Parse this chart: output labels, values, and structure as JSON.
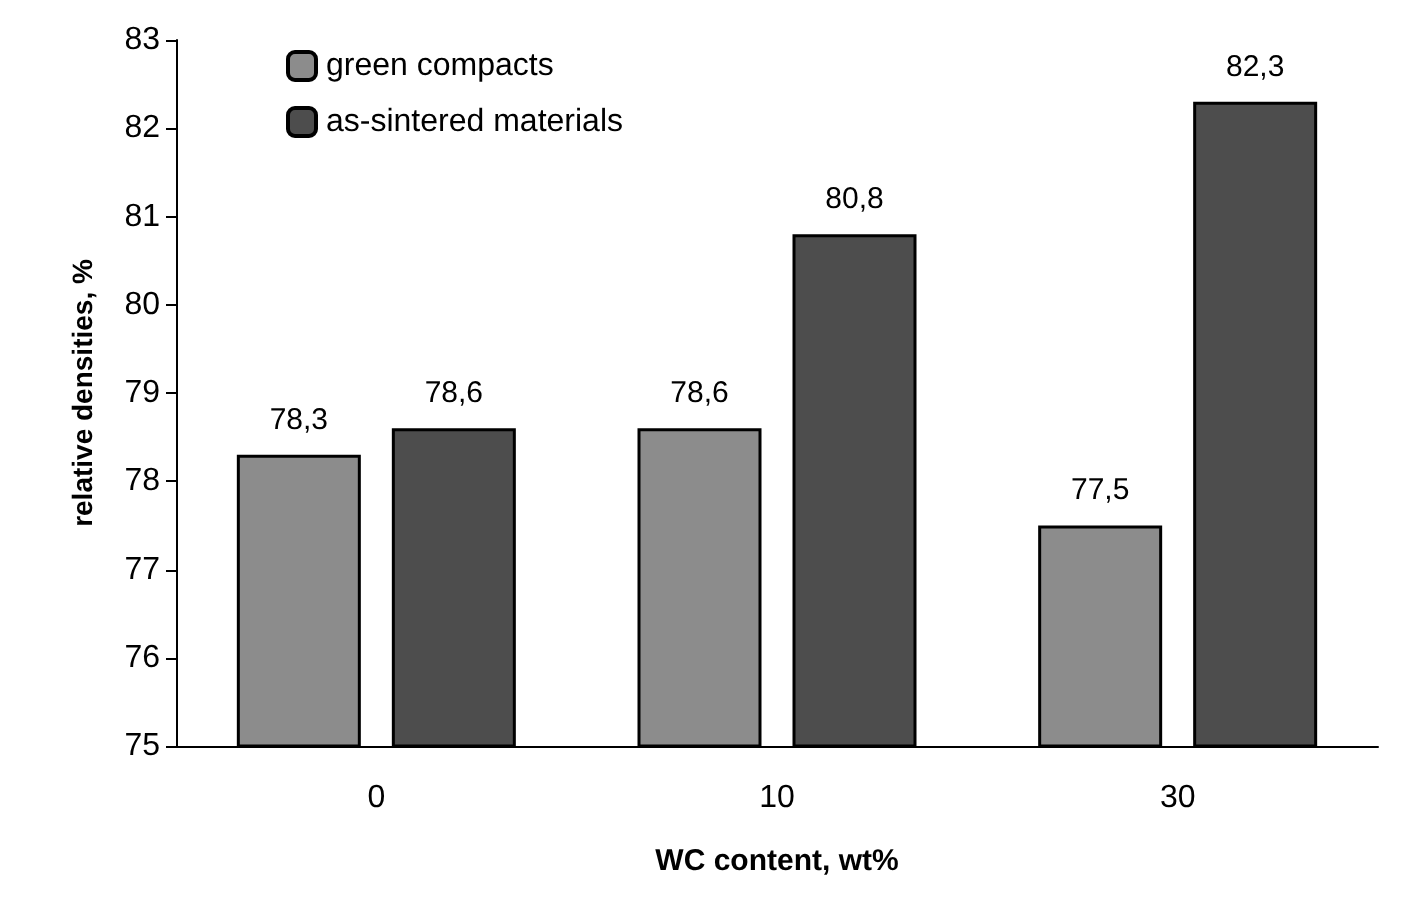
{
  "chart_data": {
    "type": "bar",
    "xlabel": "WC content, wt%",
    "ylabel": "relative densities, %",
    "categories": [
      "0",
      "10",
      "30"
    ],
    "series": [
      {
        "name": "green compacts",
        "color": "#8c8c8c",
        "values": [
          78.3,
          78.6,
          77.5
        ],
        "value_labels": [
          "78,3",
          "78,6",
          "77,5"
        ]
      },
      {
        "name": "as-sintered materials",
        "color": "#4d4d4d",
        "values": [
          78.6,
          80.8,
          82.3
        ],
        "value_labels": [
          "78,6",
          "80,8",
          "82,3"
        ]
      }
    ],
    "ylim": [
      75,
      83
    ],
    "yticks": [
      75,
      76,
      77,
      78,
      79,
      80,
      81,
      82,
      83
    ],
    "grid": false,
    "legend": "top left"
  }
}
